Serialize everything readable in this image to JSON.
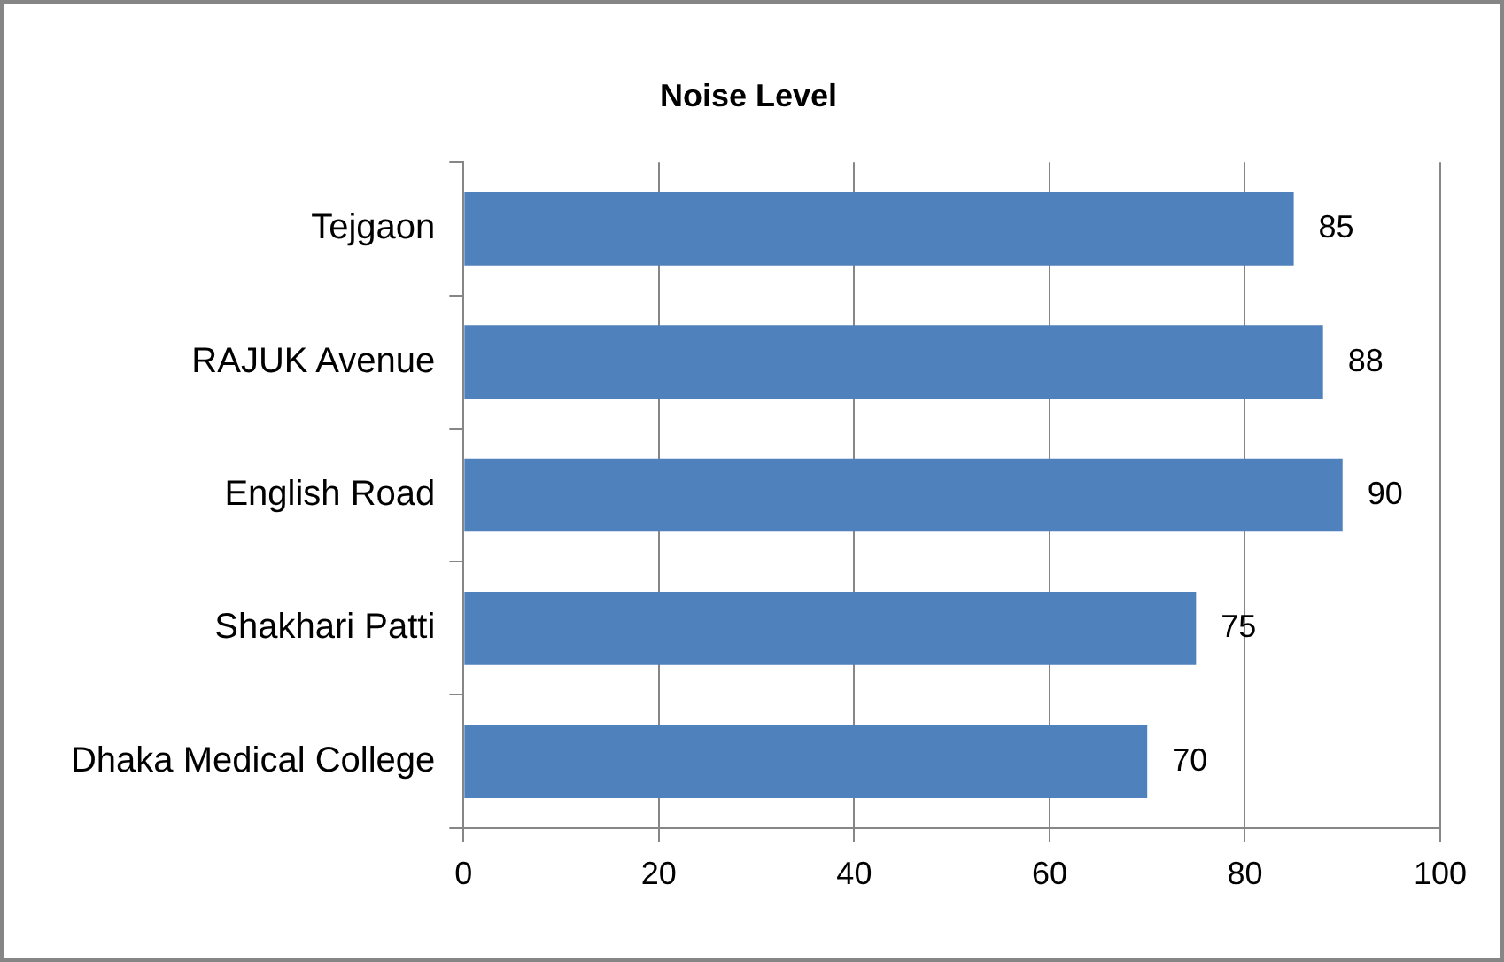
{
  "chart_data": {
    "type": "bar",
    "orientation": "horizontal",
    "title": "Noise Level",
    "categories": [
      "Tejgaon",
      "RAJUK Avenue",
      "English Road",
      "Shakhari Patti",
      "Dhaka Medical College"
    ],
    "values": [
      85,
      88,
      90,
      75,
      70
    ],
    "color": "#4f81bd",
    "xlim": [
      0,
      100
    ],
    "xticks": [
      0,
      20,
      40,
      60,
      80,
      100
    ],
    "grid": "x",
    "legend": false,
    "data_labels": true
  }
}
